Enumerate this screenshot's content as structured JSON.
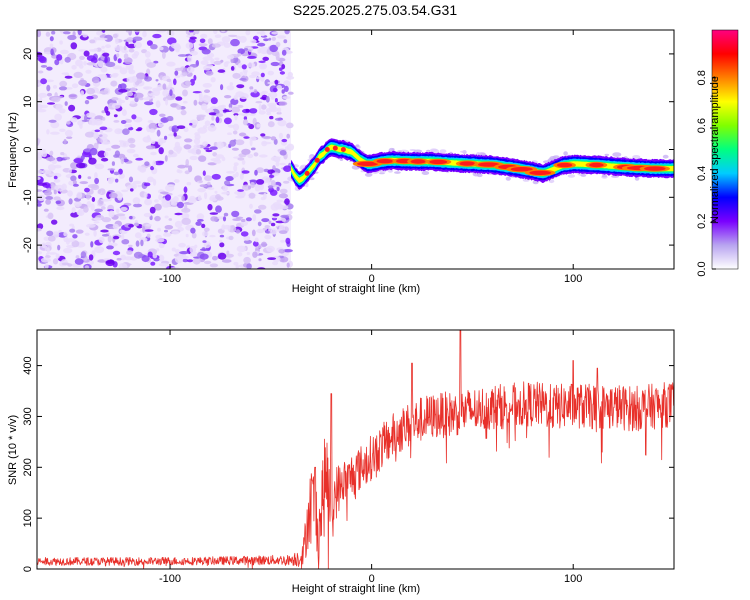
{
  "title": "S225.2025.275.03.54.G31",
  "chart_data": [
    {
      "type": "heatmap",
      "name": "spectrogram",
      "xlabel": "Height of straight line (km)",
      "ylabel": "Frequency (Hz)",
      "xlim": [
        -166,
        150
      ],
      "ylim": [
        -25,
        25
      ],
      "xticks": [
        -100,
        0,
        100
      ],
      "yticks": [
        -20,
        -10,
        0,
        10,
        20
      ],
      "noise_region_x": [
        -166,
        -40
      ],
      "ridge": {
        "description": "frequency of peak spectral amplitude vs height",
        "x": [
          -40,
          -38,
          -36,
          -34,
          -32,
          -30,
          -28,
          -26,
          -24,
          -22,
          -20,
          -18,
          -16,
          -14,
          -12,
          -10,
          -8,
          -6,
          -4,
          -2,
          0,
          5,
          10,
          20,
          30,
          40,
          50,
          60,
          70,
          80,
          85,
          90,
          95,
          100,
          110,
          120,
          130,
          140,
          150
        ],
        "y": [
          -4,
          -5.5,
          -6.5,
          -6,
          -5,
          -4,
          -3,
          -1.5,
          -1,
          0,
          0.5,
          0.3,
          0,
          0,
          -0.3,
          -0.5,
          -1.2,
          -2,
          -2.6,
          -3,
          -3,
          -2.5,
          -2.3,
          -2.5,
          -2.5,
          -2.8,
          -3,
          -3.2,
          -3.8,
          -4.5,
          -5,
          -4.2,
          -3.3,
          -3,
          -3.2,
          -3.5,
          -3.8,
          -4,
          -4
        ]
      },
      "colorbar": {
        "label": "Normalized spectral amplitude",
        "range": [
          0.0,
          1.0
        ],
        "ticks": [
          "0.0",
          "0.2",
          "0.4",
          "0.6",
          "0.8"
        ],
        "colors": [
          "#ffffff",
          "#b8a4f0",
          "#7a00ff",
          "#0000ff",
          "#00ccff",
          "#00ff80",
          "#80ff00",
          "#ffff00",
          "#ff8000",
          "#ff0000",
          "#ff0080"
        ]
      }
    },
    {
      "type": "line",
      "name": "snr",
      "xlabel": "Height of straight line (km)",
      "ylabel": "SNR (10 * v/v)",
      "xlim": [
        -166,
        150
      ],
      "ylim": [
        0,
        470
      ],
      "xticks": [
        -100,
        0,
        100
      ],
      "yticks": [
        0,
        100,
        200,
        300,
        400
      ],
      "color": "#e8302a",
      "envelope": {
        "x": [
          -166,
          -120,
          -80,
          -40,
          -34,
          -32,
          -30,
          -28,
          -26,
          -24,
          -22,
          -20,
          -18,
          -16,
          -14,
          -12,
          -10,
          -5,
          0,
          5,
          10,
          15,
          20,
          25,
          30,
          40,
          50,
          60,
          70,
          80,
          90,
          100,
          110,
          120,
          130,
          140,
          150
        ],
        "mean": [
          15,
          15,
          16,
          18,
          25,
          90,
          140,
          120,
          80,
          150,
          190,
          110,
          150,
          160,
          175,
          170,
          185,
          200,
          220,
          240,
          260,
          275,
          285,
          295,
          300,
          305,
          312,
          318,
          322,
          325,
          318,
          322,
          318,
          320,
          315,
          320,
          325
        ],
        "spread": [
          8,
          8,
          8,
          10,
          25,
          60,
          70,
          80,
          60,
          100,
          80,
          60,
          55,
          50,
          45,
          45,
          45,
          45,
          45,
          45,
          45,
          45,
          45,
          45,
          45,
          45,
          45,
          45,
          45,
          45,
          45,
          45,
          45,
          45,
          45,
          45,
          45
        ],
        "peaks": [
          {
            "x": -28,
            "y": 200
          },
          {
            "x": -20,
            "y": 345
          },
          {
            "x": 20,
            "y": 405
          },
          {
            "x": 44,
            "y": 470
          },
          {
            "x": 100,
            "y": 410
          },
          {
            "x": 112,
            "y": 395
          }
        ]
      }
    }
  ]
}
